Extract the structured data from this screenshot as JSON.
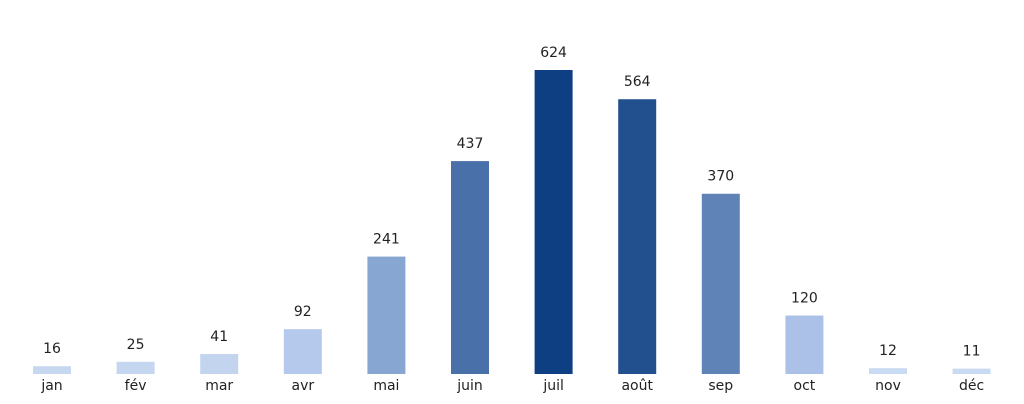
{
  "chart_data": {
    "type": "bar",
    "categories": [
      "jan",
      "fév",
      "mar",
      "avr",
      "mai",
      "juin",
      "juil",
      "août",
      "sep",
      "oct",
      "nov",
      "déc"
    ],
    "values": [
      16,
      25,
      41,
      92,
      241,
      437,
      624,
      564,
      370,
      120,
      12,
      11
    ],
    "colors": [
      "#c6d7f0",
      "#c5d6f0",
      "#c3d4ef",
      "#b5c9ec",
      "#88a6d2",
      "#4a70aa",
      "#0f3f83",
      "#22508f",
      "#5f83b7",
      "#abc1e8",
      "#c9daf3",
      "#c9daf3"
    ]
  }
}
